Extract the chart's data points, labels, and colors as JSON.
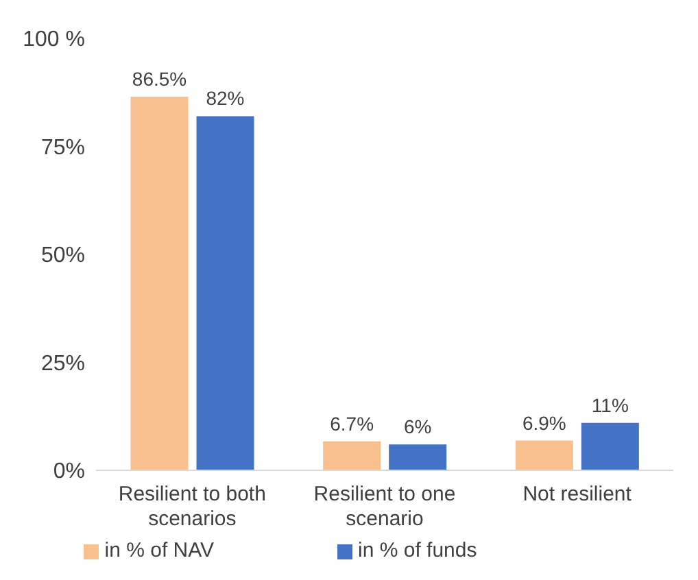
{
  "chart_data": {
    "type": "bar",
    "categories": [
      "Resilient to both scenarios",
      "Resilient to one scenario",
      "Not resilient"
    ],
    "series": [
      {
        "name": "in % of NAV",
        "color": "#f9c08f",
        "values": [
          86.5,
          6.7,
          6.9
        ],
        "value_labels": [
          "86.5%",
          "6.7%",
          "6.9%"
        ]
      },
      {
        "name": "in % of funds",
        "color": "#4472c4",
        "values": [
          82,
          6,
          11
        ],
        "value_labels": [
          "82%",
          "6%",
          "11%"
        ]
      }
    ],
    "ylim": [
      0,
      100
    ],
    "yticks": [
      {
        "value": 0,
        "label": "0%"
      },
      {
        "value": 25,
        "label": "25%"
      },
      {
        "value": 50,
        "label": "50%"
      },
      {
        "value": 75,
        "label": "75%"
      },
      {
        "value": 100,
        "label": "100 %"
      }
    ],
    "grid": false,
    "legend": "bottom"
  }
}
